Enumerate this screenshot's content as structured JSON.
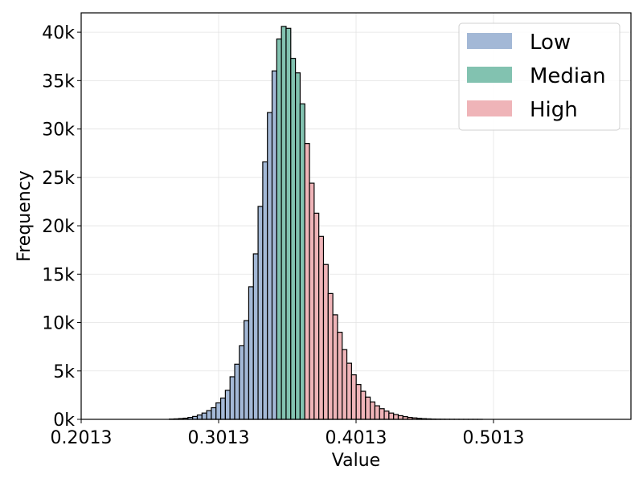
{
  "chart_data": {
    "type": "bar",
    "xlabel": "Value",
    "ylabel": "Frequency",
    "xlim": [
      0.2013,
      0.6013
    ],
    "ylim": [
      0,
      42000
    ],
    "grid": true,
    "legend_position": "top-right",
    "x_ticks": [
      {
        "value": 0.2013,
        "label": "0.2013"
      },
      {
        "value": 0.3013,
        "label": "0.3013"
      },
      {
        "value": 0.4013,
        "label": "0.4013"
      },
      {
        "value": 0.5013,
        "label": "0.5013"
      }
    ],
    "y_ticks": [
      {
        "value": 0,
        "label": "0k"
      },
      {
        "value": 5000,
        "label": "5k"
      },
      {
        "value": 10000,
        "label": "10k"
      },
      {
        "value": 15000,
        "label": "15k"
      },
      {
        "value": 20000,
        "label": "20k"
      },
      {
        "value": 25000,
        "label": "25k"
      },
      {
        "value": 30000,
        "label": "30k"
      },
      {
        "value": 35000,
        "label": "35k"
      },
      {
        "value": 40000,
        "label": "40k"
      }
    ],
    "series": [
      {
        "name": "Low",
        "color": "#a3b8d6",
        "bins": [
          [
            0.2654,
            0.2688,
            30
          ],
          [
            0.2688,
            0.2722,
            50
          ],
          [
            0.2722,
            0.2756,
            80
          ],
          [
            0.2756,
            0.279,
            120
          ],
          [
            0.279,
            0.2824,
            200
          ],
          [
            0.2824,
            0.2858,
            300
          ],
          [
            0.2858,
            0.2892,
            450
          ],
          [
            0.2892,
            0.2926,
            650
          ],
          [
            0.2926,
            0.296,
            900
          ],
          [
            0.296,
            0.2994,
            1200
          ],
          [
            0.2994,
            0.3028,
            1700
          ],
          [
            0.3028,
            0.3062,
            2200
          ],
          [
            0.3062,
            0.3096,
            3000
          ],
          [
            0.3096,
            0.313,
            4400
          ],
          [
            0.313,
            0.3164,
            5700
          ],
          [
            0.3164,
            0.3198,
            7600
          ],
          [
            0.3198,
            0.3232,
            10200
          ],
          [
            0.3232,
            0.3266,
            13700
          ],
          [
            0.3266,
            0.33,
            17100
          ],
          [
            0.33,
            0.3334,
            22000
          ],
          [
            0.3334,
            0.3368,
            26600
          ],
          [
            0.3368,
            0.3402,
            31700
          ],
          [
            0.3402,
            0.3436,
            36000
          ]
        ]
      },
      {
        "name": "Median",
        "color": "#82c2b0",
        "bins": [
          [
            0.3436,
            0.347,
            39300
          ],
          [
            0.347,
            0.3504,
            40600
          ],
          [
            0.3504,
            0.3538,
            40400
          ],
          [
            0.3538,
            0.3572,
            37300
          ],
          [
            0.3572,
            0.3606,
            35800
          ],
          [
            0.3606,
            0.364,
            32600
          ]
        ]
      },
      {
        "name": "High",
        "color": "#efb4b8",
        "bins": [
          [
            0.364,
            0.3674,
            28500
          ],
          [
            0.3674,
            0.3708,
            24400
          ],
          [
            0.3708,
            0.3742,
            21300
          ],
          [
            0.3742,
            0.3776,
            18900
          ],
          [
            0.3776,
            0.381,
            16000
          ],
          [
            0.381,
            0.3844,
            13000
          ],
          [
            0.3844,
            0.3878,
            10800
          ],
          [
            0.3878,
            0.3912,
            9000
          ],
          [
            0.3912,
            0.3946,
            7200
          ],
          [
            0.3946,
            0.398,
            5800
          ],
          [
            0.398,
            0.4014,
            4600
          ],
          [
            0.4014,
            0.4048,
            3600
          ],
          [
            0.4048,
            0.4082,
            2900
          ],
          [
            0.4082,
            0.4116,
            2300
          ],
          [
            0.4116,
            0.415,
            1800
          ],
          [
            0.415,
            0.4184,
            1400
          ],
          [
            0.4184,
            0.4218,
            1100
          ],
          [
            0.4218,
            0.4252,
            850
          ],
          [
            0.4252,
            0.4286,
            650
          ],
          [
            0.4286,
            0.432,
            500
          ],
          [
            0.432,
            0.4354,
            380
          ],
          [
            0.4354,
            0.4388,
            280
          ],
          [
            0.4388,
            0.4422,
            200
          ],
          [
            0.4422,
            0.4456,
            150
          ],
          [
            0.4456,
            0.449,
            100
          ],
          [
            0.449,
            0.4524,
            70
          ],
          [
            0.4524,
            0.4558,
            50
          ],
          [
            0.4558,
            0.4592,
            30
          ],
          [
            0.4592,
            0.4626,
            20
          ],
          [
            0.4626,
            0.466,
            15
          ],
          [
            0.466,
            0.4694,
            10
          ],
          [
            0.4694,
            0.4728,
            8
          ],
          [
            0.4728,
            0.4762,
            5
          ],
          [
            0.4762,
            0.4796,
            4
          ],
          [
            0.4796,
            0.483,
            3
          ],
          [
            0.483,
            0.4864,
            2
          ],
          [
            0.4864,
            0.4898,
            2
          ],
          [
            0.4898,
            0.4932,
            1
          ]
        ]
      }
    ]
  }
}
